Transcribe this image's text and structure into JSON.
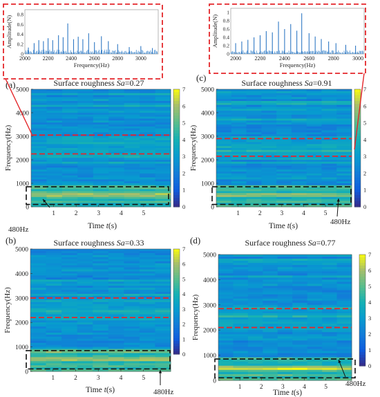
{
  "insets": [
    {
      "id": "inset-a",
      "ylabel": "Amplitude(N)",
      "xlabel": "Frequency(Hz)",
      "xticks": [
        "2000",
        "2200",
        "2400",
        "2600",
        "2800",
        "3000"
      ],
      "xlim": [
        2000,
        3150
      ],
      "yticks": [
        "0",
        "0.2",
        "0.4",
        "0.6",
        "0.8"
      ],
      "ylim": [
        0,
        0.9
      ],
      "peaks": [
        {
          "f": 2030,
          "a": 0.13
        },
        {
          "f": 2080,
          "a": 0.22
        },
        {
          "f": 2120,
          "a": 0.28
        },
        {
          "f": 2160,
          "a": 0.26
        },
        {
          "f": 2200,
          "a": 0.32
        },
        {
          "f": 2240,
          "a": 0.28
        },
        {
          "f": 2290,
          "a": 0.38
        },
        {
          "f": 2330,
          "a": 0.34
        },
        {
          "f": 2370,
          "a": 0.62
        },
        {
          "f": 2420,
          "a": 0.3
        },
        {
          "f": 2460,
          "a": 0.35
        },
        {
          "f": 2500,
          "a": 0.3
        },
        {
          "f": 2550,
          "a": 0.42
        },
        {
          "f": 2600,
          "a": 0.24
        },
        {
          "f": 2660,
          "a": 0.36
        },
        {
          "f": 2720,
          "a": 0.26
        },
        {
          "f": 2800,
          "a": 0.2
        },
        {
          "f": 2900,
          "a": 0.14
        },
        {
          "f": 3000,
          "a": 0.16
        },
        {
          "f": 3100,
          "a": 0.12
        }
      ]
    },
    {
      "id": "inset-c",
      "ylabel": "Amplitude(N)",
      "xlabel": "Frequency(Hz)",
      "xticks": [
        "2000",
        "2200",
        "2400",
        "2600",
        "2800",
        "3000"
      ],
      "xlim": [
        1960,
        3050
      ],
      "yticks": [
        "0",
        "0.2",
        "0.4",
        "0.6",
        "0.8",
        "1"
      ],
      "ylim": [
        0,
        1.1
      ],
      "peaks": [
        {
          "f": 2000,
          "a": 0.26
        },
        {
          "f": 2050,
          "a": 0.3
        },
        {
          "f": 2100,
          "a": 0.34
        },
        {
          "f": 2150,
          "a": 0.4
        },
        {
          "f": 2200,
          "a": 0.45
        },
        {
          "f": 2250,
          "a": 0.55
        },
        {
          "f": 2300,
          "a": 0.52
        },
        {
          "f": 2350,
          "a": 0.78
        },
        {
          "f": 2400,
          "a": 0.6
        },
        {
          "f": 2450,
          "a": 0.72
        },
        {
          "f": 2500,
          "a": 0.56
        },
        {
          "f": 2540,
          "a": 0.98
        },
        {
          "f": 2600,
          "a": 0.5
        },
        {
          "f": 2650,
          "a": 0.42
        },
        {
          "f": 2700,
          "a": 0.36
        },
        {
          "f": 2760,
          "a": 0.3
        },
        {
          "f": 2820,
          "a": 0.26
        },
        {
          "f": 2900,
          "a": 0.22
        },
        {
          "f": 2980,
          "a": 0.2
        }
      ]
    }
  ],
  "panels": [
    {
      "id": "panel-a",
      "label": "(a)",
      "title_prefix": "Surface roughness ",
      "title_var": "Sa",
      "title_value": "=0.27",
      "ylabel": "Frequency(Hz)",
      "xlabel_prefix": "Time ",
      "xlabel_var": "t",
      "xlabel_unit": "(s)",
      "yticks": [
        "0",
        "1000",
        "2000",
        "3000",
        "4000",
        "5000"
      ],
      "xticks": [
        "1",
        "2",
        "3",
        "4",
        "5"
      ],
      "colorbar_ticks": [
        "0",
        "1",
        "2",
        "3",
        "4",
        "5",
        "6",
        "7"
      ],
      "annotation": "480Hz",
      "seed": 11
    },
    {
      "id": "panel-c",
      "label": "(c)",
      "title_prefix": "Surface roughness ",
      "title_var": "Sa",
      "title_value": "=0.91",
      "ylabel": "Frequency(Hz)",
      "xlabel_prefix": "Time ",
      "xlabel_var": "t",
      "xlabel_unit": "(s)",
      "yticks": [
        "0",
        "1000",
        "2000",
        "3000",
        "4000",
        "5000"
      ],
      "xticks": [
        "1",
        "2",
        "3",
        "4",
        "5"
      ],
      "colorbar_ticks": [
        "0",
        "1",
        "2",
        "3",
        "4",
        "5",
        "6",
        "7"
      ],
      "annotation": "480Hz",
      "seed": 23
    },
    {
      "id": "panel-b",
      "label": "(b)",
      "title_prefix": "Surface roughness ",
      "title_var": "Sa",
      "title_value": "=0.33",
      "ylabel": "Frequency(Hz)",
      "xlabel_prefix": "Time ",
      "xlabel_var": "t",
      "xlabel_unit": "(s)",
      "yticks": [
        "0",
        "1000",
        "2000",
        "3000",
        "4000",
        "5000"
      ],
      "xticks": [
        "1",
        "2",
        "3",
        "4",
        "5"
      ],
      "colorbar_ticks": [
        "0",
        "1",
        "2",
        "3",
        "4",
        "5",
        "6",
        "7"
      ],
      "annotation": "480Hz",
      "seed": 37
    },
    {
      "id": "panel-d",
      "label": "(d)",
      "title_prefix": "Surface roughness ",
      "title_var": "Sa",
      "title_value": "=0.77",
      "ylabel": "Frequency(Hz)",
      "xlabel_prefix": "Time ",
      "xlabel_var": "t",
      "xlabel_unit": "(s)",
      "yticks": [
        "0",
        "1000",
        "2000",
        "3000",
        "4000",
        "5000"
      ],
      "xticks": [
        "1",
        "2",
        "3",
        "4",
        "5"
      ],
      "colorbar_ticks": [
        "0",
        "1",
        "2",
        "3",
        "4",
        "5",
        "6",
        "7"
      ],
      "annotation": "480Hz",
      "seed": 53
    }
  ],
  "chart_data": [
    {
      "type": "heatmap",
      "panel": "(a)",
      "title": "Surface roughness Sa=0.27",
      "xlabel": "Time t(s)",
      "ylabel": "Frequency(Hz)",
      "xlim": [
        0,
        6.2
      ],
      "ylim": [
        0,
        5000
      ],
      "colorbar_range": [
        0,
        7
      ],
      "highlight_bands_hz": [
        [
          2250,
          3050
        ],
        [
          100,
          850
        ]
      ],
      "annotation": "480Hz"
    },
    {
      "type": "heatmap",
      "panel": "(c)",
      "title": "Surface roughness Sa=0.91",
      "xlabel": "Time t(s)",
      "ylabel": "Frequency(Hz)",
      "xlim": [
        0,
        6.2
      ],
      "ylim": [
        0,
        5000
      ],
      "colorbar_range": [
        0,
        7
      ],
      "highlight_bands_hz": [
        [
          2150,
          2900
        ],
        [
          100,
          850
        ]
      ],
      "annotation": "480Hz"
    },
    {
      "type": "heatmap",
      "panel": "(b)",
      "title": "Surface roughness Sa=0.33",
      "xlabel": "Time t(s)",
      "ylabel": "Frequency(Hz)",
      "xlim": [
        0,
        6.2
      ],
      "ylim": [
        0,
        5000
      ],
      "colorbar_range": [
        0,
        7
      ],
      "highlight_bands_hz": [
        [
          2200,
          3000
        ],
        [
          100,
          850
        ]
      ],
      "annotation": "480Hz"
    },
    {
      "type": "heatmap",
      "panel": "(d)",
      "title": "Surface roughness Sa=0.77",
      "xlabel": "Time t(s)",
      "ylabel": "Frequency(Hz)",
      "xlim": [
        0,
        6.2
      ],
      "ylim": [
        0,
        5000
      ],
      "colorbar_range": [
        0,
        7
      ],
      "highlight_bands_hz": [
        [
          2100,
          2850
        ],
        [
          100,
          850
        ]
      ],
      "annotation": "480Hz"
    }
  ]
}
